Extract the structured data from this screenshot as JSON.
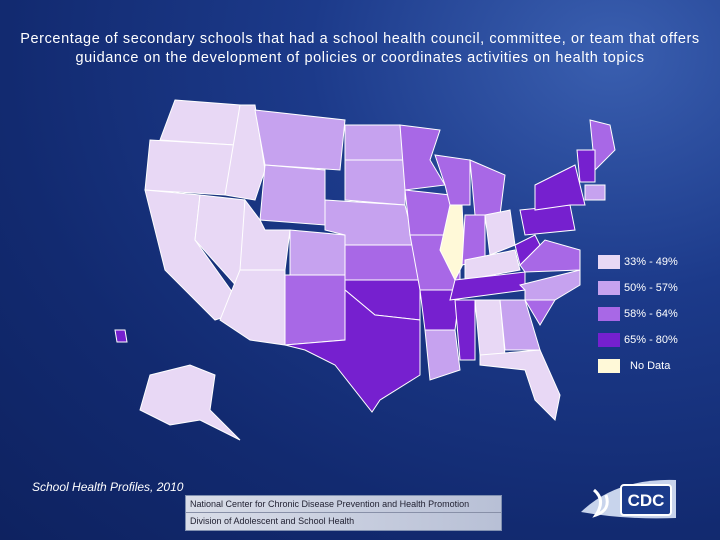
{
  "title": "Percentage of secondary schools that had a school health council, committee, or team that offers guidance on the development of policies or coordinates activities on health topics",
  "legend": [
    {
      "label": "33% - 49%",
      "color": "#e8d8f5"
    },
    {
      "label": "50% - 57%",
      "color": "#c6a2ef"
    },
    {
      "label": "58% - 64%",
      "color": "#a868e6"
    },
    {
      "label": "65% - 80%",
      "color": "#7620cf"
    },
    {
      "label": "No Data",
      "color": "#fff9d8"
    }
  ],
  "source": "School Health Profiles, 2010",
  "footer": [
    "National Center for Chronic Disease Prevention and Health Promotion",
    "Division of Adolescent and School Health"
  ],
  "logo": "CDC"
}
